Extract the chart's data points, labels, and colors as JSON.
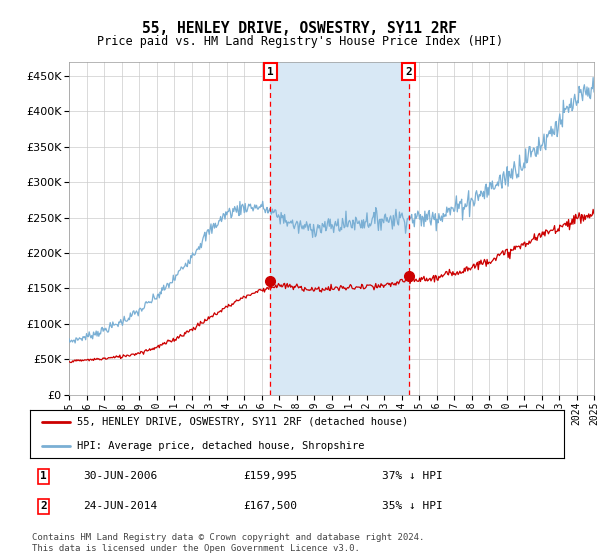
{
  "title": "55, HENLEY DRIVE, OSWESTRY, SY11 2RF",
  "subtitle": "Price paid vs. HM Land Registry's House Price Index (HPI)",
  "hpi_color": "#7aafd4",
  "price_color": "#cc0000",
  "marker1_t": 11.5,
  "marker2_t": 19.4,
  "marker1_price_val": 159995,
  "marker2_price_val": 167500,
  "marker1_date": "30-JUN-2006",
  "marker1_price": "£159,995",
  "marker1_pct": "37% ↓ HPI",
  "marker2_date": "24-JUN-2014",
  "marker2_price": "£167,500",
  "marker2_pct": "35% ↓ HPI",
  "legend_line1": "55, HENLEY DRIVE, OSWESTRY, SY11 2RF (detached house)",
  "legend_line2": "HPI: Average price, detached house, Shropshire",
  "footer": "Contains HM Land Registry data © Crown copyright and database right 2024.\nThis data is licensed under the Open Government Licence v3.0.",
  "ylim": [
    0,
    470000
  ],
  "yticks": [
    0,
    50000,
    100000,
    150000,
    200000,
    250000,
    300000,
    350000,
    400000,
    450000
  ],
  "plot_bg": "#ffffff",
  "shade_color": "#d8e8f5"
}
